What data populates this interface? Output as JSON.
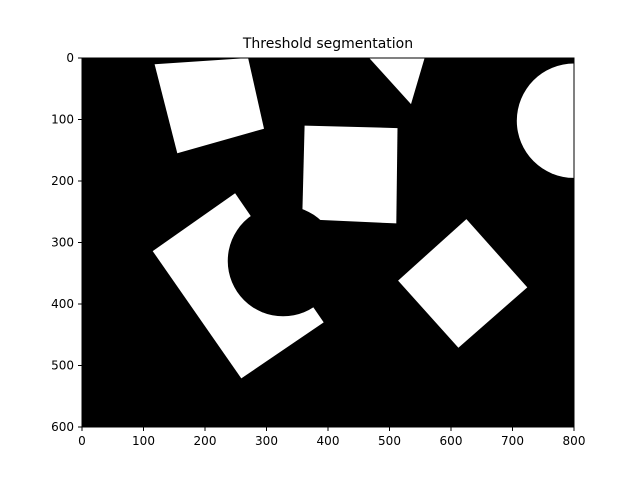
{
  "chart_data": {
    "type": "image",
    "title": "Threshold segmentation",
    "xlabel": "",
    "ylabel": "",
    "image_width": 800,
    "image_height": 600,
    "xlim": [
      0,
      800
    ],
    "ylim": [
      600,
      0
    ],
    "xticks": [
      0,
      100,
      200,
      300,
      400,
      500,
      600,
      700,
      800
    ],
    "yticks": [
      0,
      100,
      200,
      300,
      400,
      500,
      600
    ],
    "grid": false,
    "colormap": "gray",
    "background_color": "#000000",
    "foreground_color": "#ffffff",
    "regions": [
      {
        "name": "rotated-square-top-left",
        "shape": "polygon",
        "points": [
          [
            118,
            10
          ],
          [
            270,
            0
          ],
          [
            296,
            115
          ],
          [
            155,
            155
          ]
        ]
      },
      {
        "name": "triangle-top",
        "shape": "polygon",
        "points": [
          [
            467,
            0
          ],
          [
            557,
            0
          ],
          [
            535,
            75
          ]
        ]
      },
      {
        "name": "half-circle-right",
        "shape": "circle",
        "center": [
          800,
          102
        ],
        "radius": 93
      },
      {
        "name": "square-center",
        "shape": "polygon",
        "points": [
          [
            362,
            110
          ],
          [
            513,
            114
          ],
          [
            511,
            269
          ],
          [
            358,
            262
          ]
        ]
      },
      {
        "name": "rotated-rectangle-with-cutout",
        "shape": "polygon",
        "points": [
          [
            115,
            314
          ],
          [
            249,
            220
          ],
          [
            393,
            430
          ],
          [
            259,
            521
          ]
        ]
      },
      {
        "name": "circular-cutout",
        "shape": "hole-circle",
        "center": [
          327,
          330
        ],
        "radius": 90
      },
      {
        "name": "rotated-square-right",
        "shape": "polygon",
        "points": [
          [
            625,
            262
          ],
          [
            724,
            373
          ],
          [
            612,
            471
          ],
          [
            514,
            362
          ]
        ]
      }
    ]
  }
}
